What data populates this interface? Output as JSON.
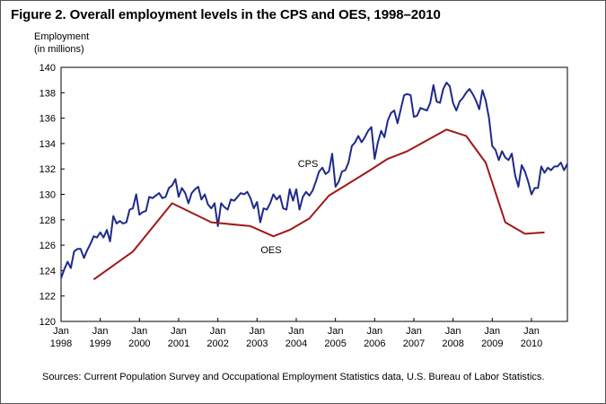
{
  "figure": {
    "title": "Figure 2. Overall employment levels in the CPS and OES, 1998–2010",
    "ylabel_line1": "Employment",
    "ylabel_line2": "(in millions)",
    "source": "Sources: Current Population Survey and Occupational Employment Statistics data, U.S. Bureau of Labor Statistics."
  },
  "chart_data": {
    "type": "line",
    "title": "Figure 2. Overall employment levels in the CPS and OES, 1998–2010",
    "ylabel": "Employment (in millions)",
    "ylim": [
      120,
      140
    ],
    "yticks": [
      120,
      122,
      124,
      126,
      128,
      130,
      132,
      134,
      136,
      138,
      140
    ],
    "xlim": [
      1998.0,
      2010.9167
    ],
    "xticks": [
      {
        "x": 1998,
        "line1": "Jan",
        "line2": "1998"
      },
      {
        "x": 1999,
        "line1": "Jan",
        "line2": "1999"
      },
      {
        "x": 2000,
        "line1": "Jan",
        "line2": "2000"
      },
      {
        "x": 2001,
        "line1": "Jan",
        "line2": "2001"
      },
      {
        "x": 2002,
        "line1": "Jan",
        "line2": "2002"
      },
      {
        "x": 2003,
        "line1": "Jan",
        "line2": "2003"
      },
      {
        "x": 2004,
        "line1": "Jan",
        "line2": "2004"
      },
      {
        "x": 2005,
        "line1": "Jan",
        "line2": "2005"
      },
      {
        "x": 2006,
        "line1": "Jan",
        "line2": "2006"
      },
      {
        "x": 2007,
        "line1": "Jan",
        "line2": "2007"
      },
      {
        "x": 2008,
        "line1": "Jan",
        "line2": "2008"
      },
      {
        "x": 2009,
        "line1": "Jan",
        "line2": "2009"
      },
      {
        "x": 2010,
        "line1": "Jan",
        "line2": "2010"
      }
    ],
    "grid": false,
    "series": [
      {
        "name": "CPS",
        "color": "#1f2a8a",
        "x": [
          1998.0,
          1998.083,
          1998.167,
          1998.25,
          1998.333,
          1998.417,
          1998.5,
          1998.583,
          1998.667,
          1998.75,
          1998.833,
          1998.917,
          1999.0,
          1999.083,
          1999.167,
          1999.25,
          1999.333,
          1999.417,
          1999.5,
          1999.583,
          1999.667,
          1999.75,
          1999.833,
          1999.917,
          2000.0,
          2000.083,
          2000.167,
          2000.25,
          2000.333,
          2000.417,
          2000.5,
          2000.583,
          2000.667,
          2000.75,
          2000.833,
          2000.917,
          2001.0,
          2001.083,
          2001.167,
          2001.25,
          2001.333,
          2001.417,
          2001.5,
          2001.583,
          2001.667,
          2001.75,
          2001.833,
          2001.917,
          2002.0,
          2002.083,
          2002.167,
          2002.25,
          2002.333,
          2002.417,
          2002.5,
          2002.583,
          2002.667,
          2002.75,
          2002.833,
          2002.917,
          2003.0,
          2003.083,
          2003.167,
          2003.25,
          2003.333,
          2003.417,
          2003.5,
          2003.583,
          2003.667,
          2003.75,
          2003.833,
          2003.917,
          2004.0,
          2004.083,
          2004.167,
          2004.25,
          2004.333,
          2004.417,
          2004.5,
          2004.583,
          2004.667,
          2004.75,
          2004.833,
          2004.917,
          2005.0,
          2005.083,
          2005.167,
          2005.25,
          2005.333,
          2005.417,
          2005.5,
          2005.583,
          2005.667,
          2005.75,
          2005.833,
          2005.917,
          2006.0,
          2006.083,
          2006.167,
          2006.25,
          2006.333,
          2006.417,
          2006.5,
          2006.583,
          2006.667,
          2006.75,
          2006.833,
          2006.917,
          2007.0,
          2007.083,
          2007.167,
          2007.25,
          2007.333,
          2007.417,
          2007.5,
          2007.583,
          2007.667,
          2007.75,
          2007.833,
          2007.917,
          2008.0,
          2008.083,
          2008.167,
          2008.25,
          2008.333,
          2008.417,
          2008.5,
          2008.583,
          2008.667,
          2008.75,
          2008.833,
          2008.917,
          2009.0,
          2009.083,
          2009.167,
          2009.25,
          2009.333,
          2009.417,
          2009.5,
          2009.583,
          2009.667,
          2009.75,
          2009.833,
          2009.917,
          2010.0,
          2010.083,
          2010.167,
          2010.25,
          2010.333,
          2010.417,
          2010.5,
          2010.583,
          2010.667,
          2010.75,
          2010.833,
          2010.917
        ],
        "values": [
          123.4,
          124.1,
          124.7,
          124.2,
          125.5,
          125.7,
          125.7,
          125.0,
          125.6,
          126.1,
          126.7,
          126.6,
          127.0,
          126.6,
          127.2,
          126.3,
          128.3,
          127.7,
          127.9,
          127.7,
          127.8,
          128.8,
          128.9,
          130.0,
          128.4,
          128.6,
          128.7,
          129.8,
          129.7,
          129.9,
          130.1,
          129.7,
          129.8,
          130.5,
          130.7,
          131.2,
          129.8,
          130.5,
          130.1,
          129.3,
          130.1,
          130.4,
          130.6,
          129.6,
          130.0,
          129.2,
          128.9,
          129.3,
          127.5,
          129.3,
          129.0,
          128.8,
          129.6,
          129.5,
          129.8,
          130.1,
          130.0,
          130.2,
          129.7,
          128.9,
          129.4,
          127.8,
          128.9,
          128.8,
          129.3,
          130.0,
          129.6,
          129.9,
          128.9,
          128.8,
          130.4,
          129.5,
          130.4,
          128.8,
          129.8,
          130.2,
          129.9,
          130.3,
          131.0,
          131.8,
          132.1,
          131.6,
          131.8,
          133.2,
          130.6,
          131.0,
          131.8,
          131.9,
          132.5,
          133.8,
          134.1,
          134.6,
          134.1,
          134.5,
          135.0,
          135.3,
          132.8,
          134.1,
          135.0,
          134.5,
          135.8,
          136.4,
          136.6,
          135.6,
          136.7,
          137.8,
          137.9,
          137.8,
          136.1,
          136.2,
          136.8,
          136.7,
          136.6,
          137.2,
          138.6,
          137.3,
          137.2,
          138.3,
          138.8,
          138.5,
          137.2,
          136.6,
          137.3,
          137.6,
          138.0,
          138.3,
          137.9,
          137.4,
          136.7,
          138.2,
          137.4,
          136.0,
          133.8,
          133.5,
          132.7,
          133.4,
          132.9,
          132.7,
          133.2,
          131.5,
          130.6,
          132.3,
          131.8,
          131.0,
          130.0,
          130.5,
          130.5,
          132.2,
          131.7,
          132.1,
          131.9,
          132.2,
          132.2,
          132.5,
          131.9,
          132.4
        ]
      },
      {
        "name": "OES",
        "color": "#a01818",
        "x": [
          1998.833,
          1999.833,
          2000.833,
          2001.833,
          2002.833,
          2003.417,
          2003.833,
          2004.333,
          2004.833,
          2005.833,
          2006.333,
          2006.833,
          2007.833,
          2008.333,
          2008.833,
          2009.333,
          2009.833,
          2010.333
        ],
        "values": [
          123.3,
          125.5,
          129.3,
          127.8,
          127.5,
          126.7,
          127.2,
          128.1,
          129.9,
          131.8,
          132.8,
          133.4,
          135.1,
          134.6,
          132.5,
          127.8,
          126.9,
          127.0
        ]
      }
    ],
    "annotations": [
      {
        "text": "CPS",
        "series": "CPS"
      },
      {
        "text": "OES",
        "series": "OES"
      }
    ]
  }
}
